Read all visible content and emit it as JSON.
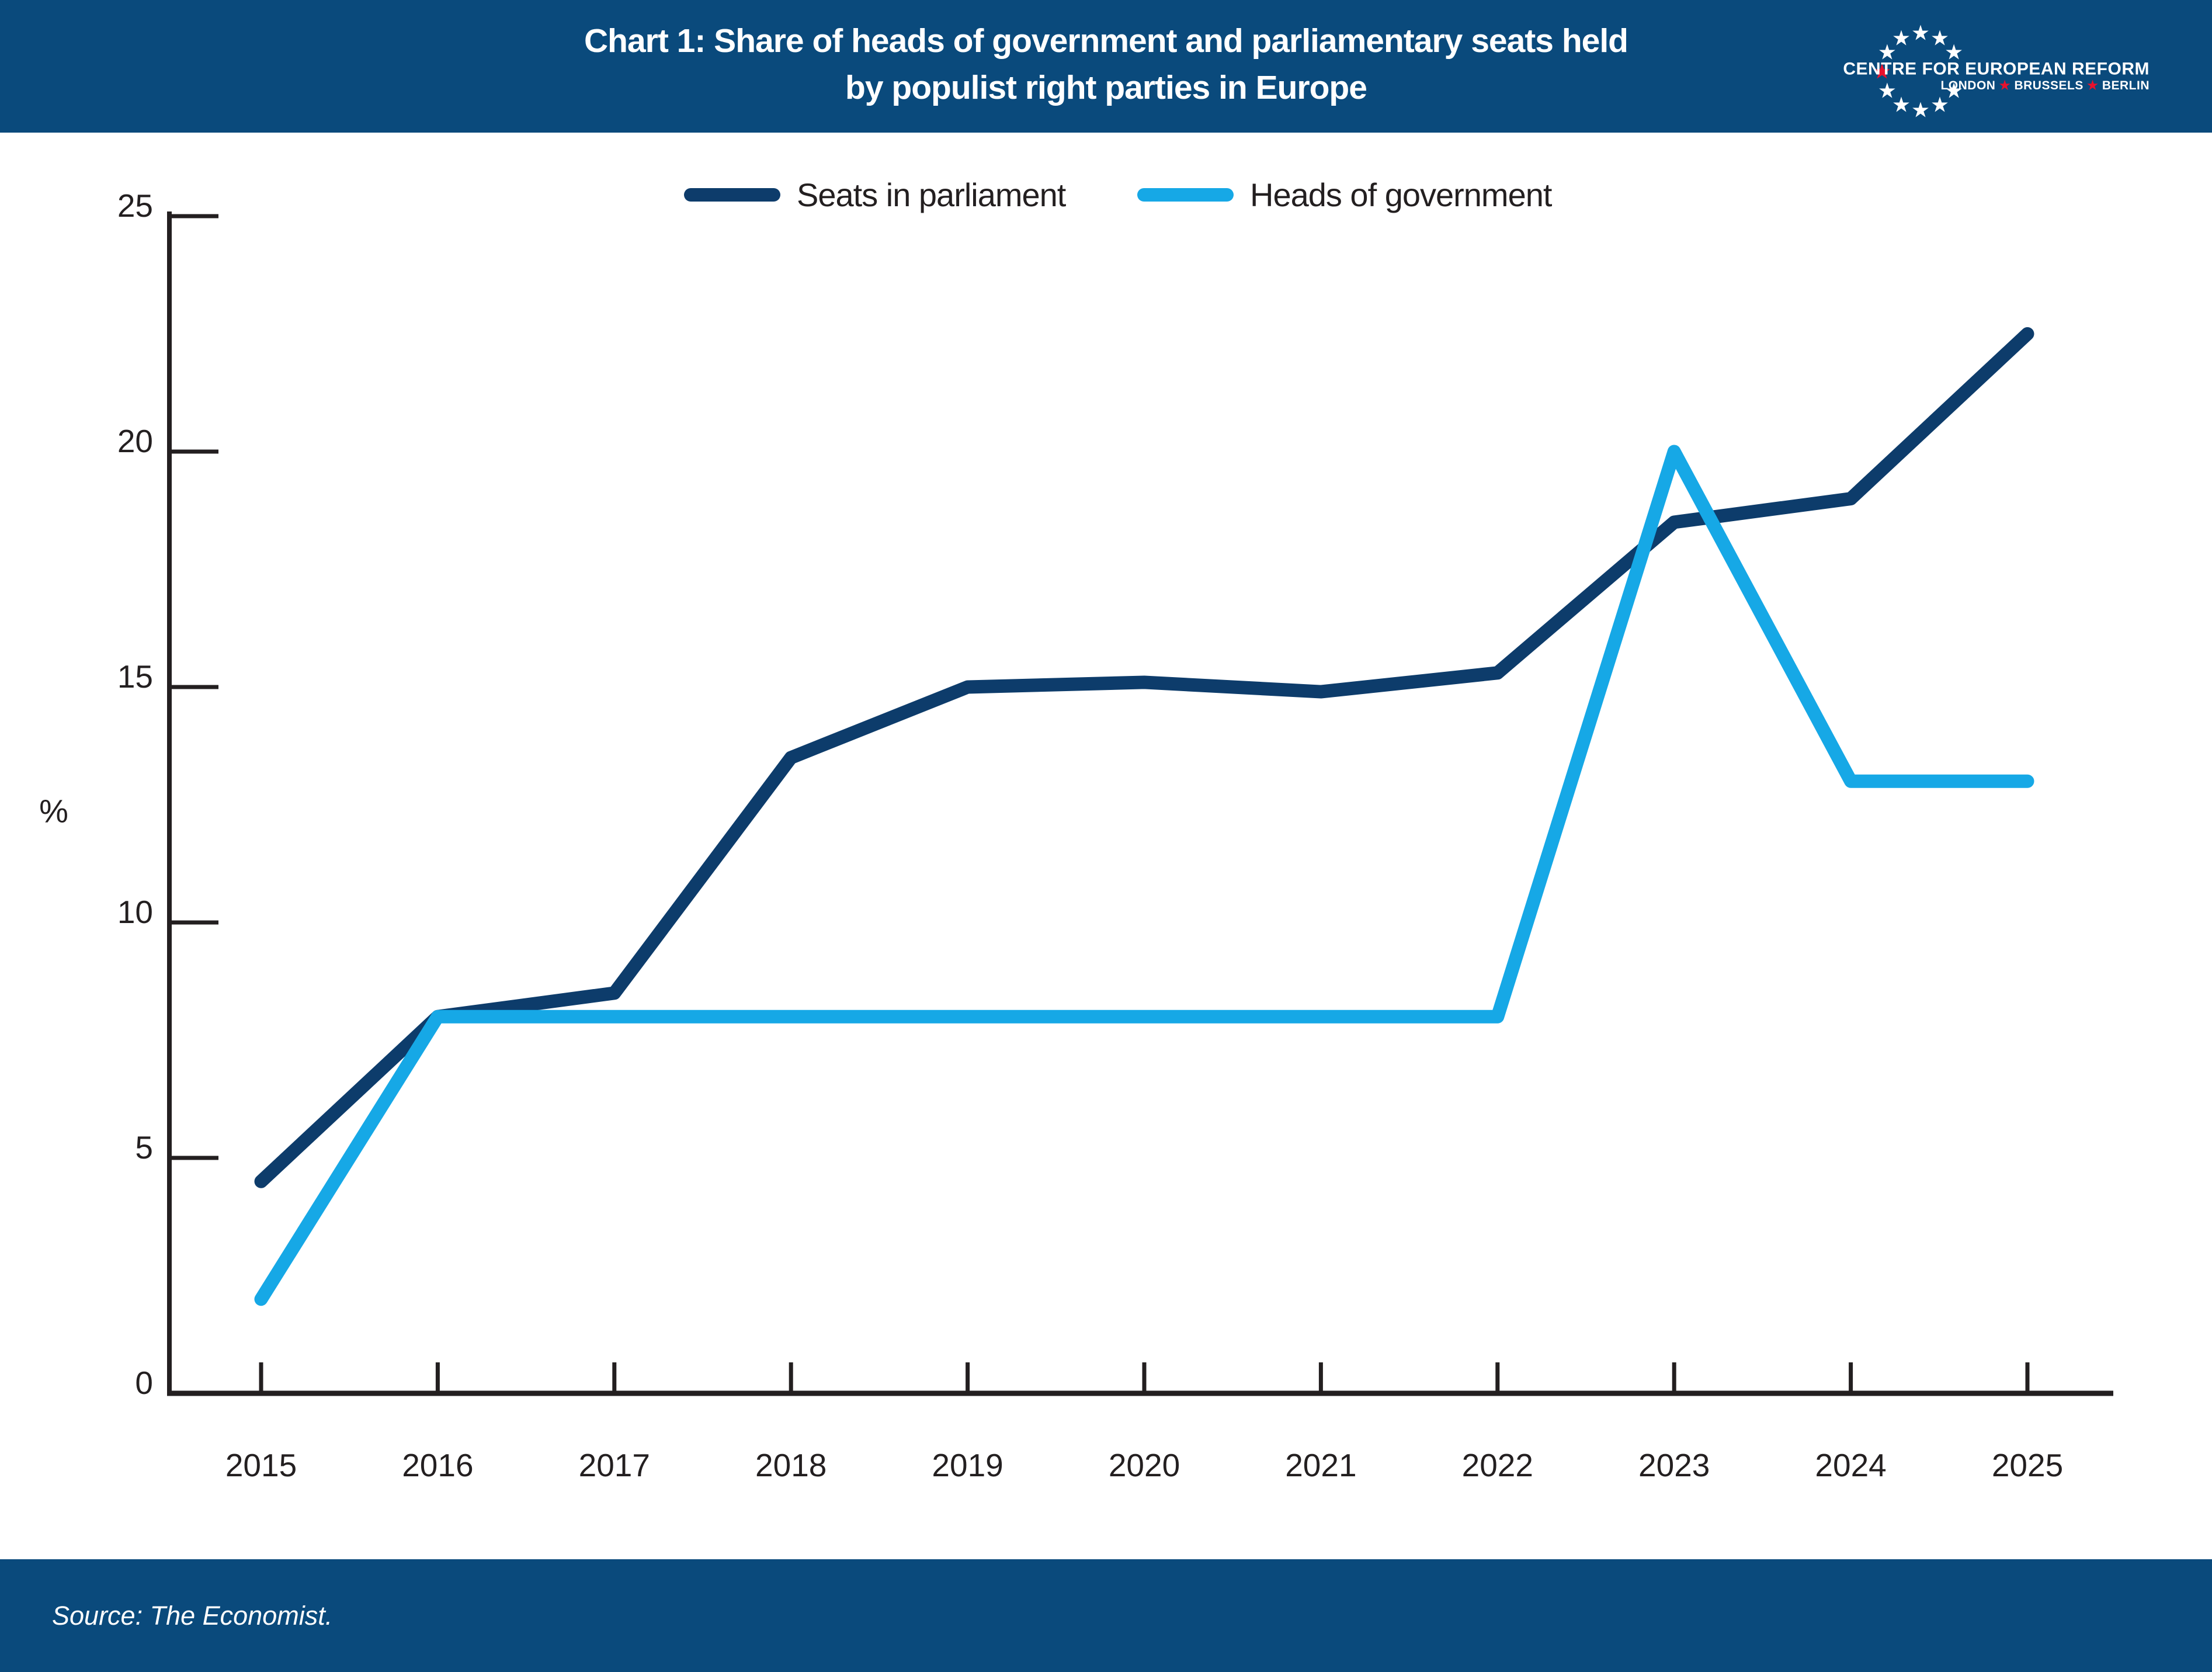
{
  "header": {
    "title_line1": "Chart 1: Share of heads of government and parliamentary seats held",
    "title_line2": "by populist right parties in Europe"
  },
  "logo": {
    "org_name": "CENTRE FOR EUROPEAN REFORM",
    "cities": [
      "LONDON",
      "BRUSSELS",
      "BERLIN"
    ],
    "star_color_main": "#ffffff",
    "star_color_accent": "#e8112d"
  },
  "legend": {
    "items": [
      {
        "label": "Seats in parliament",
        "color": "#0d3c6b"
      },
      {
        "label": "Heads of government",
        "color": "#16a8e6"
      }
    ]
  },
  "chart_data": {
    "type": "line",
    "title": "Chart 1: Share of heads of government and parliamentary seats held by populist right parties in Europe",
    "xlabel": "",
    "ylabel": "%",
    "x": [
      2015,
      2016,
      2017,
      2018,
      2019,
      2020,
      2021,
      2022,
      2023,
      2024,
      2025
    ],
    "series": [
      {
        "name": "Seats in parliament",
        "color": "#0d3c6b",
        "values": [
          4.5,
          8,
          8.5,
          13.5,
          15,
          15.1,
          14.9,
          15.3,
          18.5,
          19,
          22.5
        ]
      },
      {
        "name": "Heads of government",
        "color": "#16a8e6",
        "values": [
          2,
          8,
          8,
          8,
          8,
          8,
          8,
          8,
          20,
          13,
          13
        ]
      }
    ],
    "ylim": [
      0,
      25
    ],
    "yticks": [
      0,
      5,
      10,
      15,
      20,
      25
    ],
    "grid": false,
    "legend_position": "top-center",
    "axis_color": "#231f20"
  },
  "footer": {
    "source": "Source: The Economist."
  },
  "colors": {
    "band": "#0a4a7c",
    "background": "#ffffff",
    "text_dark": "#231f20"
  }
}
